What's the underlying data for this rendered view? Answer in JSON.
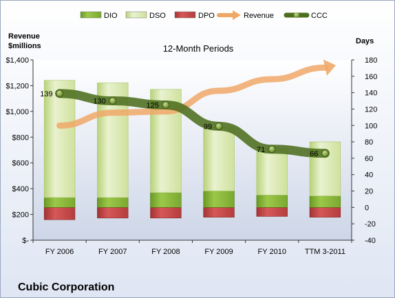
{
  "company": "Cubic Corporation",
  "chart_data": {
    "type": "bar",
    "subtitle": "12-Month Periods",
    "categories": [
      "FY 2006",
      "FY 2007",
      "FY 2008",
      "FY 2009",
      "FY 2010",
      "TTM 3-2011"
    ],
    "left_axis": {
      "label_line1": "Revenue",
      "label_line2": "$millions",
      "ylim": [
        0,
        1400
      ],
      "ticks": [
        0,
        200,
        400,
        600,
        800,
        1000,
        1200,
        1400
      ],
      "tick_labels": [
        "$-",
        "$200",
        "$400",
        "$600",
        "$800",
        "$1,000",
        "$1,200",
        "$1,400"
      ]
    },
    "right_axis": {
      "label": "Days",
      "ylim": [
        -40,
        180
      ],
      "ticks": [
        -40,
        -20,
        0,
        20,
        40,
        60,
        80,
        100,
        120,
        140,
        160,
        180
      ],
      "tick_labels": [
        "-40",
        "-20",
        "0",
        "20",
        "40",
        "60",
        "80",
        "100",
        "120",
        "140",
        "160",
        "180"
      ]
    },
    "series": [
      {
        "name": "DIO",
        "axis": "days",
        "values": [
          12,
          12,
          18,
          20,
          15,
          14
        ],
        "color": "#8dbd3a"
      },
      {
        "name": "DSO",
        "axis": "days",
        "values": [
          143,
          140,
          126,
          77,
          57,
          66
        ],
        "color": "#dcebb5"
      },
      {
        "name": "DPO",
        "axis": "days",
        "values": [
          -15,
          -13,
          -13,
          -12,
          -11,
          -12
        ],
        "color": "#c44a4a"
      },
      {
        "name": "Revenue",
        "axis": "revenue",
        "values": [
          890,
          990,
          1000,
          1160,
          1250,
          1340
        ],
        "color": "#f0a868"
      },
      {
        "name": "CCC",
        "axis": "days",
        "values": [
          139,
          130,
          125,
          99,
          71,
          66
        ],
        "color": "#4d6e1f"
      }
    ],
    "ccc_labels": [
      "139",
      "130",
      "125",
      "99",
      "71",
      "66"
    ],
    "legend": [
      "DIO",
      "DSO",
      "DPO",
      "Revenue",
      "CCC"
    ],
    "legend_position": "top",
    "grid": false
  }
}
